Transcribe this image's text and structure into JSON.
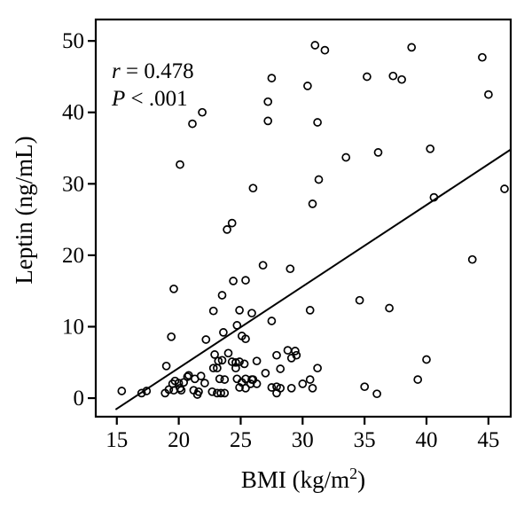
{
  "figure": {
    "background": "#ffffff",
    "stroke_color": "#000000"
  },
  "chart_data": {
    "type": "scatter",
    "title": "",
    "xlabel": "BMI (kg/m²)",
    "ylabel": "Leptin (ng/mL)",
    "x_axis": {
      "label_pre": "BMI (kg/m",
      "label_sup": "2",
      "label_post": ")",
      "ticks": [
        15,
        20,
        25,
        30,
        35,
        40,
        45
      ]
    },
    "y_axis": {
      "label": "Leptin (ng/mL)",
      "ticks": [
        0,
        10,
        20,
        30,
        40,
        50
      ]
    },
    "xlim": [
      13.3,
      46.8
    ],
    "ylim": [
      -2.6,
      53.0
    ],
    "grid": false,
    "legend": "none",
    "annotation": {
      "r_symbol": "r",
      "r_rest": " = 0.478",
      "p_symbol": "P",
      "p_rest": " < .001",
      "r_value": 0.478,
      "p_value": "< .001"
    },
    "regression_line": {
      "x1": 14.9,
      "y1": -1.6,
      "x2": 46.8,
      "y2": 34.8
    },
    "marker": {
      "shape": "open-circle",
      "radius": 4,
      "stroke_width": 1.7
    },
    "points": [
      [
        21.9,
        40.0
      ],
      [
        21.1,
        38.4
      ],
      [
        20.1,
        32.7
      ],
      [
        27.5,
        44.8
      ],
      [
        27.2,
        41.5
      ],
      [
        27.2,
        38.8
      ],
      [
        31.0,
        49.4
      ],
      [
        31.8,
        48.7
      ],
      [
        38.8,
        49.1
      ],
      [
        44.5,
        47.7
      ],
      [
        30.4,
        43.7
      ],
      [
        35.2,
        45.0
      ],
      [
        37.3,
        45.1
      ],
      [
        38.0,
        44.6
      ],
      [
        45.0,
        42.5
      ],
      [
        31.2,
        38.6
      ],
      [
        33.5,
        33.7
      ],
      [
        36.1,
        34.4
      ],
      [
        40.3,
        34.9
      ],
      [
        26.0,
        29.4
      ],
      [
        31.3,
        30.6
      ],
      [
        30.8,
        27.2
      ],
      [
        46.3,
        29.3
      ],
      [
        40.6,
        28.1
      ],
      [
        24.3,
        24.5
      ],
      [
        23.9,
        23.6
      ],
      [
        29.0,
        18.1
      ],
      [
        26.8,
        18.6
      ],
      [
        43.7,
        19.4
      ],
      [
        19.6,
        15.3
      ],
      [
        24.4,
        16.4
      ],
      [
        25.4,
        16.5
      ],
      [
        23.5,
        14.4
      ],
      [
        25.9,
        11.9
      ],
      [
        27.5,
        10.8
      ],
      [
        30.6,
        12.3
      ],
      [
        34.6,
        13.7
      ],
      [
        37.0,
        12.6
      ],
      [
        22.8,
        12.2
      ],
      [
        24.9,
        12.3
      ],
      [
        19.4,
        8.6
      ],
      [
        22.2,
        8.2
      ],
      [
        23.6,
        9.2
      ],
      [
        24.7,
        10.2
      ],
      [
        25.1,
        8.7
      ],
      [
        25.4,
        8.3
      ],
      [
        28.8,
        6.7
      ],
      [
        29.4,
        6.6
      ],
      [
        29.5,
        6.0
      ],
      [
        29.1,
        5.6
      ],
      [
        27.9,
        6.0
      ],
      [
        26.3,
        5.2
      ],
      [
        28.2,
        4.1
      ],
      [
        27.0,
        3.5
      ],
      [
        31.2,
        4.2
      ],
      [
        26.0,
        2.6
      ],
      [
        26.3,
        2.0
      ],
      [
        25.8,
        2.0
      ],
      [
        27.5,
        1.5
      ],
      [
        27.9,
        1.6
      ],
      [
        28.2,
        1.4
      ],
      [
        27.9,
        0.7
      ],
      [
        29.1,
        1.4
      ],
      [
        30.0,
        2.0
      ],
      [
        30.6,
        2.6
      ],
      [
        30.8,
        1.4
      ],
      [
        35.0,
        1.6
      ],
      [
        36.0,
        0.6
      ],
      [
        40.0,
        5.4
      ],
      [
        39.3,
        2.6
      ],
      [
        15.4,
        1.0
      ],
      [
        17.0,
        0.7
      ],
      [
        17.4,
        1.0
      ],
      [
        19.0,
        4.5
      ],
      [
        18.9,
        0.7
      ],
      [
        19.2,
        1.2
      ],
      [
        19.5,
        2.0
      ],
      [
        20.0,
        2.1
      ],
      [
        20.1,
        1.4
      ],
      [
        19.6,
        1.1
      ],
      [
        19.7,
        2.4
      ],
      [
        20.8,
        3.2
      ],
      [
        20.4,
        2.2
      ],
      [
        20.2,
        1.1
      ],
      [
        20.7,
        3.0
      ],
      [
        21.3,
        2.7
      ],
      [
        21.8,
        3.1
      ],
      [
        22.1,
        2.1
      ],
      [
        21.2,
        1.1
      ],
      [
        21.6,
        0.9
      ],
      [
        21.5,
        0.5
      ],
      [
        22.9,
        6.1
      ],
      [
        24.0,
        6.3
      ],
      [
        23.2,
        5.2
      ],
      [
        23.5,
        5.3
      ],
      [
        22.8,
        4.2
      ],
      [
        23.1,
        4.2
      ],
      [
        24.3,
        5.1
      ],
      [
        24.6,
        5.0
      ],
      [
        24.9,
        5.1
      ],
      [
        25.3,
        4.8
      ],
      [
        24.6,
        4.2
      ],
      [
        23.3,
        2.7
      ],
      [
        23.7,
        2.6
      ],
      [
        22.7,
        0.9
      ],
      [
        23.1,
        0.7
      ],
      [
        23.4,
        0.7
      ],
      [
        23.7,
        0.7
      ],
      [
        24.7,
        2.7
      ],
      [
        25.1,
        2.2
      ],
      [
        25.4,
        2.7
      ],
      [
        25.9,
        2.6
      ],
      [
        24.9,
        1.5
      ],
      [
        25.4,
        1.4
      ]
    ]
  }
}
